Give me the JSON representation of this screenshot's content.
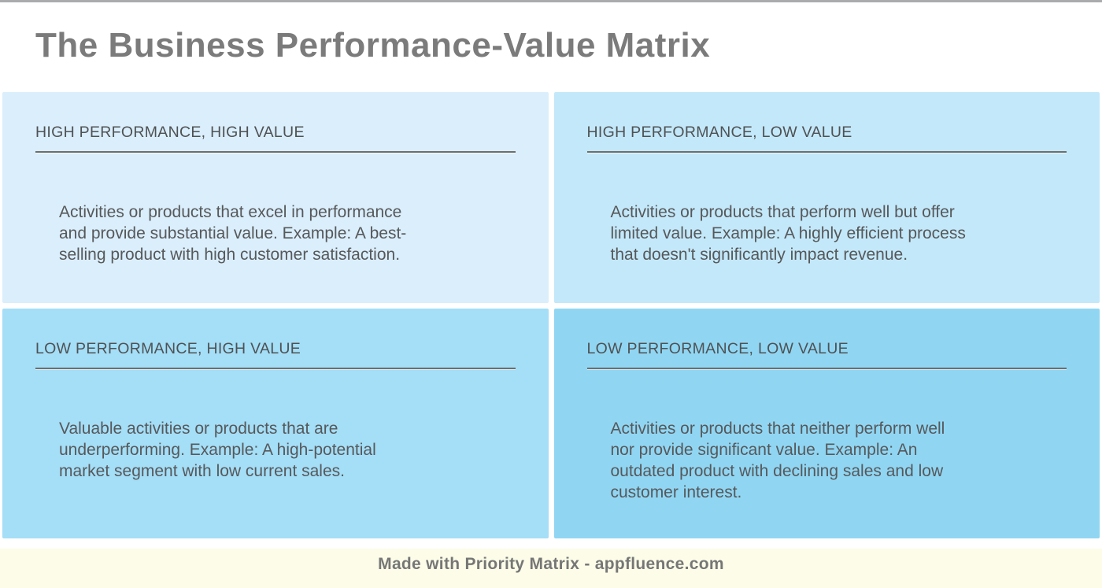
{
  "page": {
    "title": "The Business Performance-Value Matrix"
  },
  "colors": {
    "title_text": "#7b7b7b",
    "header_text": "#4f5153",
    "body_text": "#57585a",
    "underline": "#6e6e6e",
    "top_border": "#a9abad",
    "footer_background": "#fcfce9",
    "footer_text": "#767676"
  },
  "quadrants": [
    {
      "id": "high-performance-high-value",
      "title": "HIGH PERFORMANCE, HIGH VALUE",
      "description": "Activities or products that excel in performance\nand provide substantial value. Example: A best-\nselling product with high customer satisfaction.",
      "background": "#daeefb"
    },
    {
      "id": "high-performance-low-value",
      "title": "HIGH PERFORMANCE, LOW VALUE",
      "description": "Activities or products that perform well but offer\nlimited value. Example: A highly efficient process\nthat doesn't significantly impact revenue.",
      "background": "#c3e8f9"
    },
    {
      "id": "low-performance-high-value",
      "title": "LOW PERFORMANCE, HIGH VALUE",
      "description": "Valuable activities or products that are\nunderperforming. Example: A high-potential\nmarket segment with low current sales.",
      "background": "#a4def7"
    },
    {
      "id": "low-performance-low-value",
      "title": "LOW PERFORMANCE, LOW VALUE",
      "description": "Activities or products that neither perform well\nnor provide significant value. Example: An\noutdated product with declining sales and low\ncustomer interest.",
      "background": "#90d6f3"
    }
  ],
  "footer": {
    "text": "Made with Priority Matrix - appfluence.com"
  }
}
